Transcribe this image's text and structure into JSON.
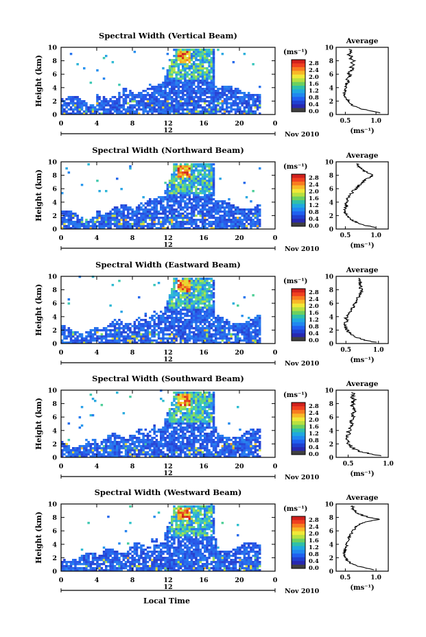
{
  "figure": {
    "xlabel": "Local Time",
    "date_label": "Nov 2010",
    "sub_tick_label": "12",
    "ylabel": "Height (km)",
    "colorbar_unit": "(ms⁻¹)",
    "colorbar_ticks": [
      "2.8",
      "2.4",
      "2.0",
      "1.6",
      "1.2",
      "0.8",
      "0.4",
      "0.0"
    ],
    "colorbar_colors": [
      "#d0201c",
      "#f04020",
      "#f87c20",
      "#f8b828",
      "#f0e838",
      "#b8e040",
      "#6cd060",
      "#30c0a8",
      "#20a8e0",
      "#2088f0",
      "#2060f0",
      "#2040d0",
      "#2828b0",
      "#404040"
    ],
    "profile_title": "Average",
    "profile_xlabel": "(ms⁻¹)"
  },
  "chart_data": [
    {
      "type": "heatmap",
      "title": "Spectral Width (Vertical Beam)",
      "xlabel": "Local Time",
      "ylabel": "Height (km)",
      "x_ticks": [
        "0",
        "4",
        "8",
        "12",
        "16",
        "20",
        "0"
      ],
      "y_ticks": [
        "0",
        "2",
        "4",
        "6",
        "8",
        "10"
      ],
      "xlim": [
        0,
        24
      ],
      "ylim": [
        0,
        10
      ],
      "z_unit": "ms-1",
      "zlim": [
        0.0,
        3.0
      ],
      "profile": {
        "title": "Average",
        "xlabel": "(ms-1)",
        "x_ticks": [
          "0.5",
          "1.0"
        ],
        "xlim": [
          0.35,
          1.2
        ],
        "height_km": [
          0.2,
          0.5,
          0.8,
          1.1,
          1.4,
          1.7,
          2.0,
          2.3,
          2.6,
          2.9,
          3.2,
          3.5,
          3.8,
          4.1,
          4.4,
          4.7,
          5.0,
          5.3,
          5.6,
          5.9,
          6.2,
          6.5,
          6.8,
          7.1,
          7.4,
          7.7,
          8.0,
          8.3,
          8.6,
          8.9,
          9.2,
          9.5
        ],
        "width": [
          1.08,
          0.95,
          0.78,
          0.68,
          0.62,
          0.58,
          0.55,
          0.53,
          0.5,
          0.49,
          0.47,
          0.5,
          0.48,
          0.52,
          0.5,
          0.53,
          0.55,
          0.52,
          0.56,
          0.58,
          0.54,
          0.6,
          0.63,
          0.57,
          0.64,
          0.6,
          0.66,
          0.58,
          0.62,
          0.55,
          0.6,
          0.58
        ]
      }
    },
    {
      "type": "heatmap",
      "title": "Spectral Width (Northward Beam)",
      "xlabel": "Local Time",
      "ylabel": "Height (km)",
      "x_ticks": [
        "0",
        "4",
        "8",
        "12",
        "16",
        "20",
        "0"
      ],
      "y_ticks": [
        "0",
        "2",
        "4",
        "6",
        "8",
        "10"
      ],
      "xlim": [
        0,
        24
      ],
      "ylim": [
        0,
        10
      ],
      "z_unit": "ms-1",
      "zlim": [
        0.0,
        3.0
      ],
      "profile": {
        "title": "Average",
        "xlabel": "(ms-1)",
        "x_ticks": [
          "0.5",
          "1.0"
        ],
        "xlim": [
          0.35,
          1.2
        ],
        "height_km": [
          0.2,
          0.5,
          0.8,
          1.1,
          1.4,
          1.7,
          2.0,
          2.3,
          2.6,
          2.9,
          3.2,
          3.5,
          3.8,
          4.1,
          4.4,
          4.7,
          5.0,
          5.3,
          5.6,
          5.9,
          6.2,
          6.5,
          6.8,
          7.1,
          7.4,
          7.7,
          8.0,
          8.3,
          8.6,
          8.9,
          9.2,
          9.5
        ],
        "width": [
          1.0,
          0.85,
          0.72,
          0.66,
          0.6,
          0.56,
          0.53,
          0.5,
          0.5,
          0.49,
          0.5,
          0.52,
          0.5,
          0.54,
          0.52,
          0.55,
          0.58,
          0.6,
          0.62,
          0.66,
          0.7,
          0.72,
          0.76,
          0.8,
          0.84,
          0.9,
          0.95,
          0.88,
          0.82,
          0.78,
          0.72,
          0.7
        ]
      }
    },
    {
      "type": "heatmap",
      "title": "Spectral Width (Eastward Beam)",
      "xlabel": "Local Time",
      "ylabel": "Height (km)",
      "x_ticks": [
        "0",
        "4",
        "8",
        "12",
        "16",
        "20",
        "0"
      ],
      "y_ticks": [
        "0",
        "2",
        "4",
        "6",
        "8",
        "10"
      ],
      "xlim": [
        0,
        24
      ],
      "ylim": [
        0,
        10
      ],
      "z_unit": "ms-1",
      "zlim": [
        0.0,
        3.0
      ],
      "profile": {
        "title": "Average",
        "xlabel": "(ms-1)",
        "x_ticks": [
          "0.5",
          "1.0"
        ],
        "xlim": [
          0.35,
          1.15
        ],
        "height_km": [
          0.2,
          0.5,
          0.8,
          1.1,
          1.4,
          1.7,
          2.0,
          2.3,
          2.6,
          2.9,
          3.2,
          3.5,
          3.8,
          4.1,
          4.4,
          4.7,
          5.0,
          5.3,
          5.6,
          5.9,
          6.2,
          6.5,
          6.8,
          7.1,
          7.4,
          7.7,
          8.0,
          8.3,
          8.6,
          8.9,
          9.2,
          9.5
        ],
        "width": [
          0.95,
          0.8,
          0.7,
          0.62,
          0.57,
          0.54,
          0.52,
          0.5,
          0.49,
          0.48,
          0.5,
          0.52,
          0.5,
          0.53,
          0.55,
          0.57,
          0.58,
          0.6,
          0.62,
          0.63,
          0.65,
          0.66,
          0.68,
          0.7,
          0.72,
          0.74,
          0.75,
          0.72,
          0.74,
          0.7,
          0.72,
          0.7
        ]
      }
    },
    {
      "type": "heatmap",
      "title": "Spectral Width (Southward Beam)",
      "xlabel": "Local Time",
      "ylabel": "Height (km)",
      "x_ticks": [
        "0",
        "4",
        "8",
        "12",
        "16",
        "20",
        "0"
      ],
      "y_ticks": [
        "0",
        "2",
        "4",
        "6",
        "8",
        "10"
      ],
      "xlim": [
        0,
        24
      ],
      "ylim": [
        0,
        10
      ],
      "z_unit": "ms-1",
      "zlim": [
        0.0,
        3.0
      ],
      "profile": {
        "title": "Average",
        "xlabel": "(ms-1)",
        "x_ticks": [
          "0.5",
          "1.0"
        ],
        "xlim": [
          0.35,
          1.0
        ],
        "height_km": [
          0.2,
          0.5,
          0.8,
          1.1,
          1.4,
          1.7,
          2.0,
          2.3,
          2.6,
          2.9,
          3.2,
          3.5,
          3.8,
          4.1,
          4.4,
          4.7,
          5.0,
          5.3,
          5.6,
          5.9,
          6.2,
          6.5,
          6.8,
          7.1,
          7.4,
          7.7,
          8.0,
          8.3,
          8.6,
          8.9,
          9.2,
          9.5
        ],
        "width": [
          0.92,
          0.8,
          0.66,
          0.6,
          0.56,
          0.53,
          0.5,
          0.49,
          0.48,
          0.5,
          0.49,
          0.51,
          0.5,
          0.53,
          0.52,
          0.54,
          0.55,
          0.53,
          0.56,
          0.55,
          0.57,
          0.55,
          0.58,
          0.56,
          0.57,
          0.55,
          0.58,
          0.56,
          0.58,
          0.55,
          0.57,
          0.56
        ]
      }
    },
    {
      "type": "heatmap",
      "title": "Spectral Width (Westward Beam)",
      "xlabel": "Local Time",
      "ylabel": "Height (km)",
      "x_ticks": [
        "0",
        "4",
        "8",
        "12",
        "16",
        "20",
        "0"
      ],
      "y_ticks": [
        "0",
        "2",
        "4",
        "6",
        "8",
        "10"
      ],
      "xlim": [
        0,
        24
      ],
      "ylim": [
        0,
        10
      ],
      "z_unit": "ms-1",
      "zlim": [
        0.0,
        3.0
      ],
      "profile": {
        "title": "Average",
        "xlabel": "(ms-1)",
        "x_ticks": [
          "0.5",
          "1.0"
        ],
        "xlim": [
          0.35,
          1.2
        ],
        "height_km": [
          0.2,
          0.5,
          0.8,
          1.1,
          1.4,
          1.7,
          2.0,
          2.3,
          2.6,
          2.9,
          3.2,
          3.5,
          3.8,
          4.1,
          4.4,
          4.7,
          5.0,
          5.3,
          5.6,
          5.9,
          6.2,
          6.5,
          6.8,
          7.1,
          7.4,
          7.7,
          8.0,
          8.3,
          8.6,
          8.9,
          9.2,
          9.5
        ],
        "width": [
          0.95,
          0.82,
          0.68,
          0.6,
          0.56,
          0.53,
          0.5,
          0.49,
          0.48,
          0.49,
          0.5,
          0.5,
          0.52,
          0.51,
          0.53,
          0.55,
          0.56,
          0.58,
          0.6,
          0.62,
          0.64,
          0.66,
          0.7,
          0.75,
          0.85,
          1.05,
          0.9,
          0.78,
          0.7,
          0.66,
          0.63,
          0.62
        ]
      }
    }
  ]
}
